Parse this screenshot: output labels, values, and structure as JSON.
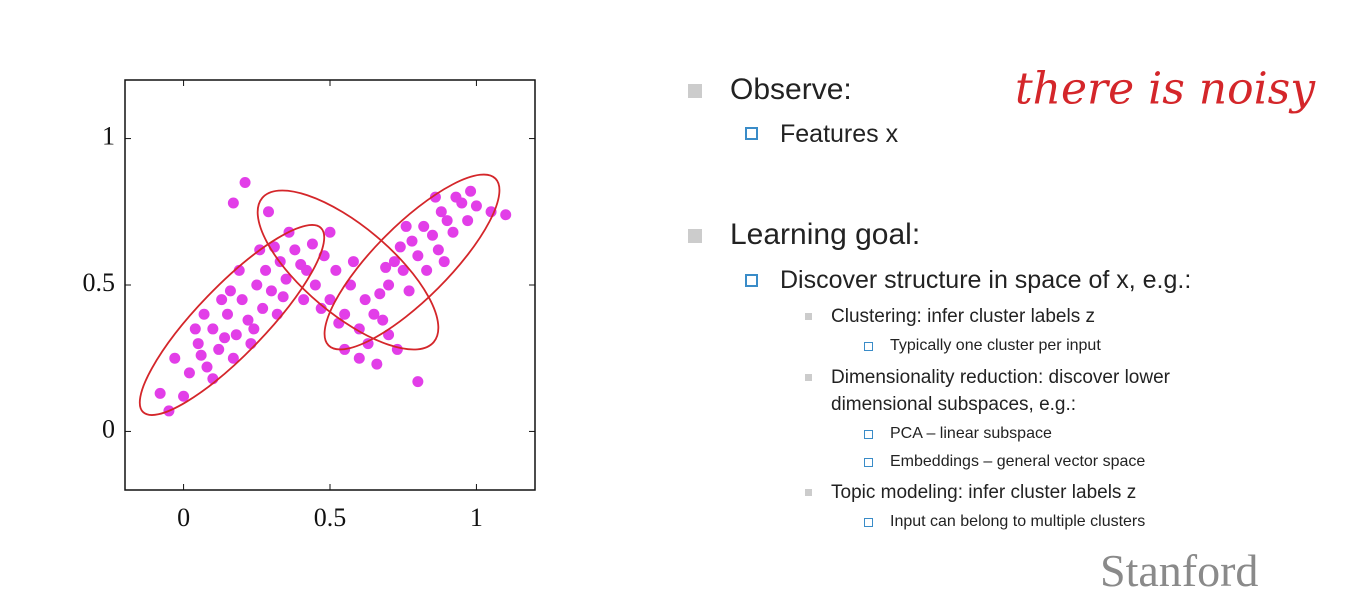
{
  "chart_data": {
    "type": "scatter",
    "x": [
      -0.05,
      -0.08,
      0,
      0.02,
      -0.03,
      0.05,
      0.08,
      0.1,
      0.12,
      0.15,
      0.18,
      0.2,
      0.22,
      0.25,
      0.27,
      0.3,
      0.28,
      0.33,
      0.35,
      0.38,
      0.4,
      0.13,
      0.07,
      0.17,
      0.23,
      0.32,
      0.26,
      0.19,
      0.36,
      0.21,
      0.17,
      0.29,
      0.1,
      0.04,
      0.24,
      0.31,
      0.14,
      0.16,
      0.34,
      0.06,
      0.42,
      0.45,
      0.48,
      0.5,
      0.52,
      0.55,
      0.57,
      0.6,
      0.62,
      0.65,
      0.68,
      0.47,
      0.53,
      0.58,
      0.44,
      0.63,
      0.67,
      0.7,
      0.5,
      0.55,
      0.41,
      0.66,
      0.6,
      0.73,
      0.7,
      0.72,
      0.75,
      0.78,
      0.8,
      0.82,
      0.85,
      0.88,
      0.9,
      0.93,
      0.95,
      0.98,
      1.0,
      1.05,
      1.1,
      0.77,
      0.83,
      0.87,
      0.92,
      0.76,
      0.86,
      0.97,
      0.74,
      0.8,
      0.69,
      0.89
    ],
    "values": [
      0.07,
      0.13,
      0.12,
      0.2,
      0.25,
      0.3,
      0.22,
      0.35,
      0.28,
      0.4,
      0.33,
      0.45,
      0.38,
      0.5,
      0.42,
      0.48,
      0.55,
      0.58,
      0.52,
      0.62,
      0.57,
      0.45,
      0.4,
      0.25,
      0.3,
      0.4,
      0.62,
      0.55,
      0.68,
      0.85,
      0.78,
      0.75,
      0.18,
      0.35,
      0.35,
      0.63,
      0.32,
      0.48,
      0.46,
      0.26,
      0.55,
      0.5,
      0.6,
      0.45,
      0.55,
      0.4,
      0.5,
      0.35,
      0.45,
      0.4,
      0.38,
      0.42,
      0.37,
      0.58,
      0.64,
      0.3,
      0.47,
      0.33,
      0.68,
      0.28,
      0.45,
      0.23,
      0.25,
      0.28,
      0.5,
      0.58,
      0.55,
      0.65,
      0.6,
      0.7,
      0.67,
      0.75,
      0.72,
      0.8,
      0.78,
      0.82,
      0.77,
      0.75,
      0.74,
      0.48,
      0.55,
      0.62,
      0.68,
      0.7,
      0.8,
      0.72,
      0.63,
      0.17,
      0.56,
      0.58
    ],
    "color": "#e23ee8",
    "xlim": [
      -0.2,
      1.2
    ],
    "ylim": [
      -0.2,
      1.2
    ],
    "xticks": [
      0,
      0.5,
      1
    ],
    "yticks": [
      0,
      0.5,
      1
    ],
    "annotation": "there is noisy"
  },
  "slide": {
    "items": [
      {
        "text": "Observe:",
        "children": [
          {
            "text": "Features x"
          }
        ]
      },
      {
        "text": "Learning goal:",
        "children": [
          {
            "text": "Discover structure in space of x, e.g.:",
            "children": [
              {
                "text": "Clustering: infer cluster labels z",
                "children": [
                  {
                    "text": "Typically one cluster per input"
                  }
                ]
              },
              {
                "text": "Dimensionality reduction: discover lower dimensional subspaces, e.g.:",
                "children": [
                  {
                    "text": "PCA – linear subspace"
                  },
                  {
                    "text": "Embeddings – general vector space"
                  }
                ]
              },
              {
                "text": "Topic modeling: infer cluster labels z",
                "children": [
                  {
                    "text": "Input can belong to multiple clusters"
                  }
                ]
              }
            ]
          }
        ]
      }
    ],
    "logo": "Stanford"
  }
}
